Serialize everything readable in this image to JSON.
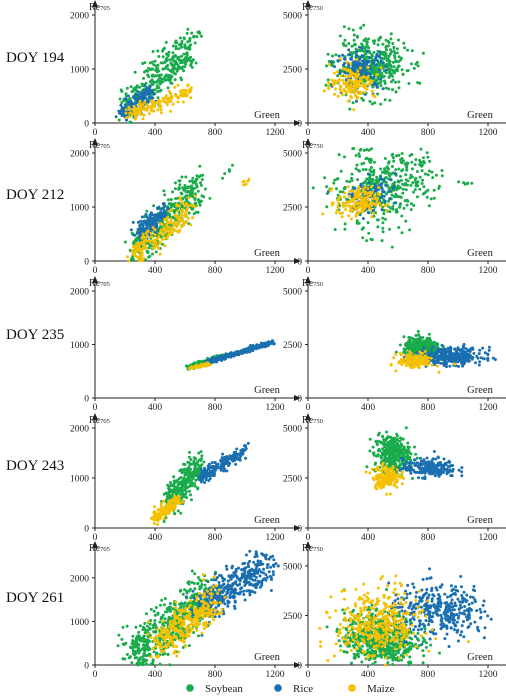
{
  "legend": [
    {
      "name": "Soybean",
      "color": "#1aab4c"
    },
    {
      "name": "Rice",
      "color": "#1a6fb0"
    },
    {
      "name": "Maize",
      "color": "#f5c000"
    }
  ],
  "x_axis_label": "Green",
  "row_labels": [
    "DOY 194",
    "DOY 212",
    "DOY 235",
    "DOY 243",
    "DOY 261"
  ],
  "chart_data": [
    {
      "type": "scatter",
      "row": "DOY 194",
      "ylabel": "Re705",
      "xlabel": "Green",
      "xlim": [
        0,
        1200
      ],
      "ylim": [
        0,
        2000
      ],
      "xticks": [
        0,
        400,
        800,
        1200
      ],
      "yticks": [
        0,
        1000,
        2000
      ],
      "series": [
        {
          "name": "Soybean",
          "color": "#1aab4c",
          "cluster": {
            "start": [
              190,
              250
            ],
            "end": [
              640,
              1380
            ],
            "spread": 90,
            "count": 360,
            "outlier": [
              700,
              1640
            ]
          }
        },
        {
          "name": "Rice",
          "color": "#1a6fb0",
          "cluster": {
            "start": [
              170,
              170
            ],
            "end": [
              380,
              560
            ],
            "spread": 50,
            "count": 140
          }
        },
        {
          "name": "Maize",
          "color": "#f5c000",
          "cluster": {
            "start": [
              230,
              160
            ],
            "end": [
              640,
              600
            ],
            "spread": 70,
            "count": 150
          }
        }
      ]
    },
    {
      "type": "scatter",
      "row": "DOY 194",
      "ylabel": "Re750",
      "xlabel": "Green",
      "xlim": [
        0,
        1200
      ],
      "ylim": [
        0,
        5000
      ],
      "xticks": [
        0,
        400,
        800,
        1200
      ],
      "yticks": [
        0,
        2500,
        5000
      ],
      "series": [
        {
          "name": "Soybean",
          "color": "#1aab4c",
          "blob": {
            "center": [
              420,
              2600
            ],
            "sx": 120,
            "sy": 650,
            "count": 420
          }
        },
        {
          "name": "Rice",
          "color": "#1a6fb0",
          "blob": {
            "center": [
              350,
              2500
            ],
            "sx": 80,
            "sy": 450,
            "count": 170
          }
        },
        {
          "name": "Maize",
          "color": "#f5c000",
          "blob": {
            "center": [
              300,
              1900
            ],
            "sx": 75,
            "sy": 380,
            "count": 150
          }
        }
      ]
    },
    {
      "type": "scatter",
      "row": "DOY 212",
      "ylabel": "Re705",
      "xlabel": "Green",
      "xlim": [
        0,
        1200
      ],
      "ylim": [
        0,
        2000
      ],
      "xticks": [
        0,
        400,
        800,
        1200
      ],
      "yticks": [
        0,
        1000,
        2000
      ],
      "series": [
        {
          "name": "Soybean",
          "color": "#1aab4c",
          "cluster": {
            "start": [
              250,
              200
            ],
            "end": [
              700,
              1380
            ],
            "spread": 90,
            "count": 380,
            "outlier": [
              880,
              1650
            ]
          }
        },
        {
          "name": "Rice",
          "color": "#1a6fb0",
          "cluster": {
            "start": [
              280,
              480
            ],
            "end": [
              470,
              950
            ],
            "spread": 50,
            "count": 150
          }
        },
        {
          "name": "Maize",
          "color": "#f5c000",
          "cluster": {
            "start": [
              250,
              80
            ],
            "end": [
              640,
              980
            ],
            "spread": 70,
            "count": 200,
            "outlier": [
              1010,
              1480
            ]
          }
        }
      ]
    },
    {
      "type": "scatter",
      "row": "DOY 212",
      "ylabel": "Re750",
      "xlabel": "Green",
      "xlim": [
        0,
        1200
      ],
      "ylim": [
        0,
        5000
      ],
      "xticks": [
        0,
        400,
        800,
        1200
      ],
      "yticks": [
        0,
        2500,
        5000
      ],
      "series": [
        {
          "name": "Soybean",
          "color": "#1aab4c",
          "cluster": {
            "start": [
              300,
              2700
            ],
            "end": [
              720,
              4200
            ],
            "spread": 320,
            "count": 420,
            "outlier": [
              1040,
              3600
            ]
          }
        },
        {
          "name": "Rice",
          "color": "#1a6fb0",
          "cluster": {
            "start": [
              340,
              2800
            ],
            "end": [
              500,
              3300
            ],
            "spread": 150,
            "count": 110
          }
        },
        {
          "name": "Maize",
          "color": "#f5c000",
          "blob": {
            "center": [
              330,
              2700
            ],
            "sx": 70,
            "sy": 350,
            "count": 160
          }
        }
      ]
    },
    {
      "type": "scatter",
      "row": "DOY 235",
      "ylabel": "Re705",
      "xlabel": "Green",
      "xlim": [
        0,
        1200
      ],
      "ylim": [
        0,
        2000
      ],
      "xticks": [
        0,
        400,
        800,
        1200
      ],
      "yticks": [
        0,
        1000,
        2000
      ],
      "series": [
        {
          "name": "Soybean",
          "color": "#1aab4c",
          "cluster": {
            "start": [
              620,
              560
            ],
            "end": [
              870,
              800
            ],
            "spread": 25,
            "count": 220
          }
        },
        {
          "name": "Rice",
          "color": "#1a6fb0",
          "cluster": {
            "start": [
              760,
              680
            ],
            "end": [
              1180,
              1040
            ],
            "spread": 28,
            "count": 260
          }
        },
        {
          "name": "Maize",
          "color": "#f5c000",
          "cluster": {
            "start": [
              640,
              560
            ],
            "end": [
              760,
              640
            ],
            "spread": 18,
            "count": 60
          }
        }
      ]
    },
    {
      "type": "scatter",
      "row": "DOY 235",
      "ylabel": "Re750",
      "xlabel": "Green",
      "xlim": [
        0,
        1200
      ],
      "ylim": [
        0,
        5000
      ],
      "xticks": [
        0,
        400,
        800,
        1200
      ],
      "yticks": [
        0,
        2500,
        5000
      ],
      "series": [
        {
          "name": "Soybean",
          "color": "#1aab4c",
          "blob": {
            "center": [
              760,
              2350
            ],
            "sx": 60,
            "sy": 230,
            "count": 320
          }
        },
        {
          "name": "Rice",
          "color": "#1a6fb0",
          "blob": {
            "center": [
              950,
              1950
            ],
            "sx": 110,
            "sy": 200,
            "count": 320
          }
        },
        {
          "name": "Maize",
          "color": "#f5c000",
          "blob": {
            "center": [
              720,
              1750
            ],
            "sx": 60,
            "sy": 180,
            "count": 130
          }
        }
      ]
    },
    {
      "type": "scatter",
      "row": "DOY 243",
      "ylabel": "Re705",
      "xlabel": "Green",
      "xlim": [
        0,
        1200
      ],
      "ylim": [
        0,
        2000
      ],
      "xticks": [
        0,
        400,
        800,
        1200
      ],
      "yticks": [
        0,
        1000,
        2000
      ],
      "series": [
        {
          "name": "Soybean",
          "color": "#1aab4c",
          "cluster": {
            "start": [
              480,
              500
            ],
            "end": [
              700,
              1250
            ],
            "spread": 60,
            "count": 300
          }
        },
        {
          "name": "Rice",
          "color": "#1a6fb0",
          "cluster": {
            "start": [
              700,
              1000
            ],
            "end": [
              1000,
              1550
            ],
            "spread": 45,
            "count": 200
          }
        },
        {
          "name": "Maize",
          "color": "#f5c000",
          "cluster": {
            "start": [
              400,
              200
            ],
            "end": [
              560,
              550
            ],
            "spread": 35,
            "count": 150
          }
        }
      ]
    },
    {
      "type": "scatter",
      "row": "DOY 243",
      "ylabel": "Re750",
      "xlabel": "Green",
      "xlim": [
        0,
        1200
      ],
      "ylim": [
        0,
        5000
      ],
      "xticks": [
        0,
        400,
        800,
        1200
      ],
      "yticks": [
        0,
        2500,
        5000
      ],
      "series": [
        {
          "name": "Soybean",
          "color": "#1aab4c",
          "blob": {
            "center": [
              560,
              3700
            ],
            "sx": 60,
            "sy": 480,
            "count": 320
          }
        },
        {
          "name": "Rice",
          "color": "#1a6fb0",
          "blob": {
            "center": [
              810,
              3000
            ],
            "sx": 90,
            "sy": 230,
            "count": 220
          }
        },
        {
          "name": "Maize",
          "color": "#f5c000",
          "blob": {
            "center": [
              520,
              2550
            ],
            "sx": 45,
            "sy": 280,
            "count": 160
          }
        }
      ]
    },
    {
      "type": "scatter",
      "row": "DOY 261",
      "ylabel": "Re705",
      "xlabel": "Green",
      "xlim": [
        0,
        1200
      ],
      "ylim": [
        0,
        2500
      ],
      "xticks": [
        0,
        400,
        800,
        1200
      ],
      "yticks": [
        0,
        1000,
        2000
      ],
      "series": [
        {
          "name": "Soybean",
          "color": "#1aab4c",
          "cluster": {
            "start": [
              250,
              150
            ],
            "end": [
              750,
              1600
            ],
            "spread": 130,
            "count": 550
          }
        },
        {
          "name": "Rice",
          "color": "#1a6fb0",
          "cluster": {
            "start": [
              700,
              1300
            ],
            "end": [
              1150,
              2300
            ],
            "spread": 120,
            "count": 380
          }
        },
        {
          "name": "Maize",
          "color": "#f5c000",
          "cluster": {
            "start": [
              400,
              400
            ],
            "end": [
              800,
              1500
            ],
            "spread": 100,
            "count": 280
          }
        }
      ]
    },
    {
      "type": "scatter",
      "row": "DOY 261",
      "ylabel": "Re750",
      "xlabel": "Green",
      "xlim": [
        0,
        1200
      ],
      "ylim": [
        0,
        5500
      ],
      "xticks": [
        0,
        400,
        800,
        1200
      ],
      "yticks": [
        0,
        2500,
        5000
      ],
      "series": [
        {
          "name": "Soybean",
          "color": "#1aab4c",
          "blob": {
            "center": [
              480,
              1300
            ],
            "sx": 120,
            "sy": 700,
            "count": 600
          }
        },
        {
          "name": "Rice",
          "color": "#1a6fb0",
          "blob": {
            "center": [
              880,
              2700
            ],
            "sx": 170,
            "sy": 650,
            "count": 380
          }
        },
        {
          "name": "Maize",
          "color": "#f5c000",
          "blob": {
            "center": [
              470,
              2000
            ],
            "sx": 140,
            "sy": 900,
            "count": 380
          }
        }
      ]
    }
  ]
}
